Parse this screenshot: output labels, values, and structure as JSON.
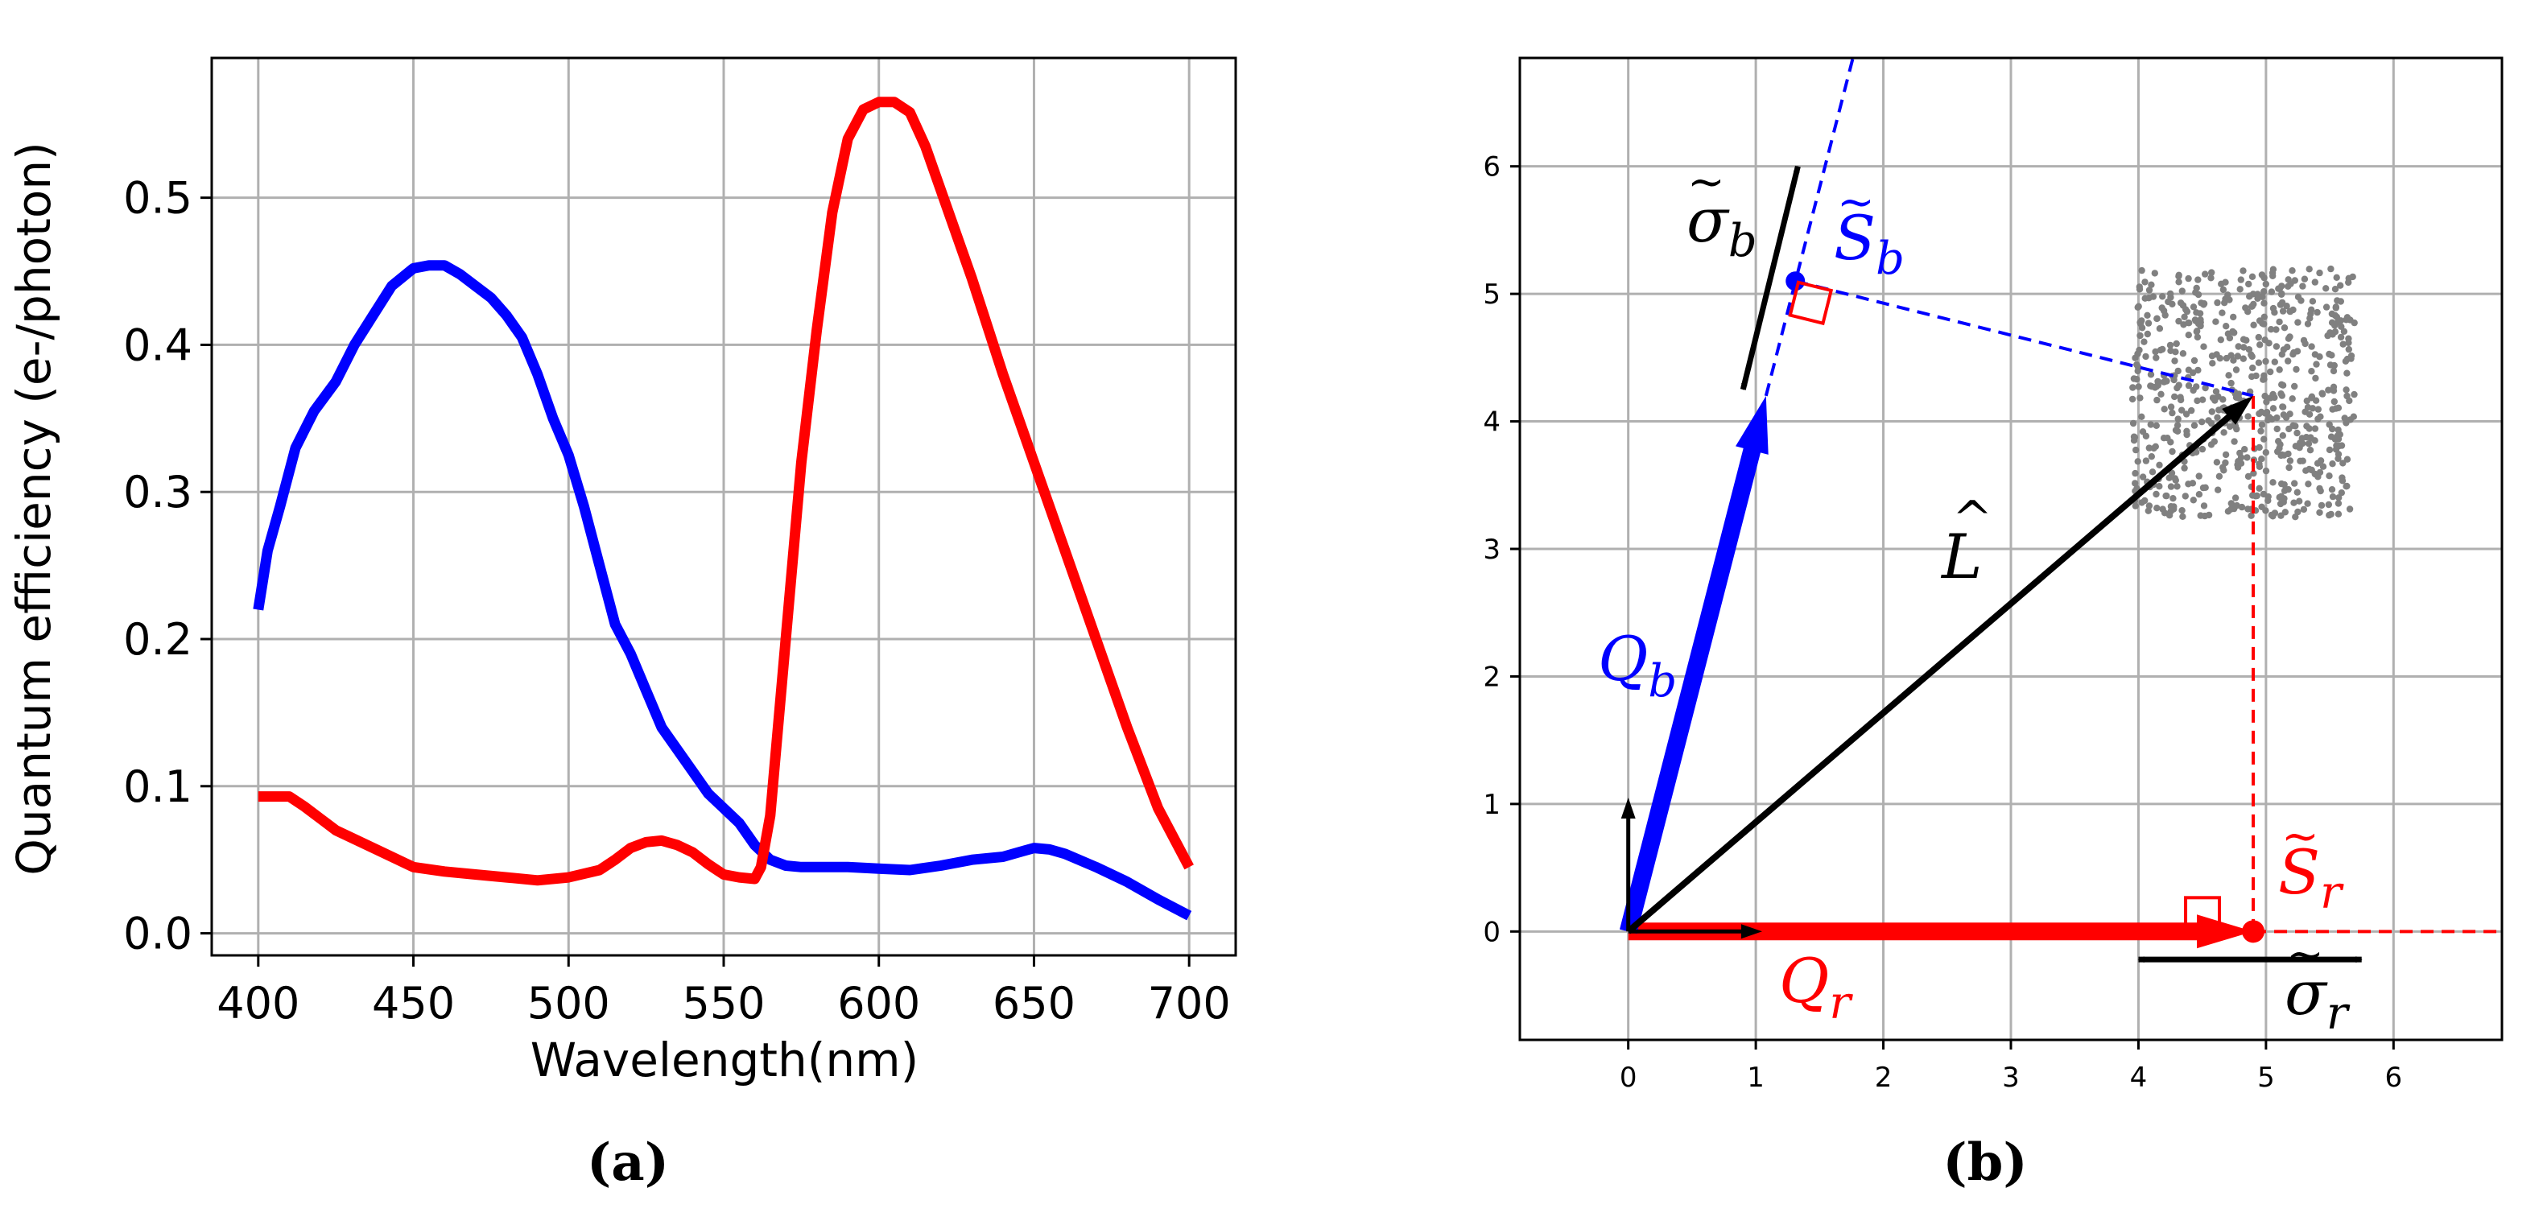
{
  "colors": {
    "blue": "#0000ff",
    "red": "#ff0000",
    "black": "#000000",
    "grid": "#b0b0b0",
    "scatter": "#808080"
  },
  "captions": {
    "a": "(a)",
    "b": "(b)"
  },
  "chart_data": [
    {
      "type": "line",
      "title": "",
      "xlabel": "Wavelength(nm)",
      "ylabel": "Quantum efficiency (e-/photon)",
      "xlim": [
        385,
        715
      ],
      "ylim": [
        -0.015,
        0.595
      ],
      "xticks": [
        400,
        450,
        500,
        550,
        600,
        650,
        700
      ],
      "yticks": [
        0.0,
        0.1,
        0.2,
        0.3,
        0.4,
        0.5
      ],
      "xtick_labels": [
        "400",
        "450",
        "500",
        "550",
        "600",
        "650",
        "700"
      ],
      "ytick_labels": [
        "0.0",
        "0.1",
        "0.2",
        "0.3",
        "0.4",
        "0.5"
      ],
      "grid": true,
      "series": [
        {
          "name": "blue",
          "color": "blue",
          "x": [
            400,
            403,
            407,
            412,
            418,
            425,
            431,
            437,
            443,
            450,
            455,
            460,
            465,
            470,
            475,
            480,
            485,
            490,
            495,
            500,
            505,
            510,
            515,
            520,
            525,
            530,
            535,
            540,
            545,
            550,
            555,
            560,
            565,
            570,
            575,
            580,
            590,
            600,
            610,
            620,
            630,
            640,
            645,
            650,
            655,
            660,
            670,
            680,
            690,
            700
          ],
          "values": [
            0.22,
            0.26,
            0.29,
            0.33,
            0.355,
            0.375,
            0.4,
            0.42,
            0.44,
            0.452,
            0.454,
            0.454,
            0.448,
            0.44,
            0.432,
            0.42,
            0.405,
            0.38,
            0.35,
            0.325,
            0.29,
            0.25,
            0.21,
            0.19,
            0.165,
            0.14,
            0.125,
            0.11,
            0.095,
            0.085,
            0.075,
            0.06,
            0.05,
            0.046,
            0.045,
            0.045,
            0.045,
            0.044,
            0.043,
            0.046,
            0.05,
            0.052,
            0.055,
            0.058,
            0.057,
            0.054,
            0.045,
            0.035,
            0.023,
            0.012
          ]
        },
        {
          "name": "red",
          "color": "red",
          "x": [
            400,
            405,
            410,
            415,
            420,
            425,
            430,
            440,
            450,
            460,
            470,
            480,
            490,
            500,
            510,
            515,
            520,
            525,
            530,
            535,
            540,
            545,
            550,
            555,
            560,
            562,
            565,
            570,
            575,
            580,
            585,
            590,
            595,
            600,
            605,
            610,
            615,
            620,
            630,
            640,
            650,
            660,
            670,
            680,
            690,
            700
          ],
          "values": [
            0.093,
            0.093,
            0.093,
            0.086,
            0.078,
            0.07,
            0.065,
            0.055,
            0.045,
            0.042,
            0.04,
            0.038,
            0.036,
            0.038,
            0.043,
            0.05,
            0.058,
            0.062,
            0.063,
            0.06,
            0.055,
            0.047,
            0.04,
            0.038,
            0.037,
            0.045,
            0.08,
            0.2,
            0.32,
            0.41,
            0.49,
            0.54,
            0.56,
            0.565,
            0.565,
            0.558,
            0.535,
            0.505,
            0.445,
            0.38,
            0.32,
            0.26,
            0.2,
            0.14,
            0.085,
            0.045
          ]
        }
      ]
    },
    {
      "type": "scatter",
      "title": "",
      "xlim": [
        -0.85,
        6.85
      ],
      "ylim": [
        -0.85,
        6.85
      ],
      "xticks": [
        0,
        1,
        2,
        3,
        4,
        5,
        6
      ],
      "yticks": [
        0,
        1,
        2,
        3,
        4,
        5,
        6
      ],
      "xtick_labels": [
        "0",
        "1",
        "2",
        "3",
        "4",
        "5",
        "6"
      ],
      "ytick_labels": [
        "0",
        "1",
        "2",
        "3",
        "4",
        "5",
        "6"
      ],
      "grid": true,
      "scatter_cloud": {
        "x_range": [
          3.95,
          5.7
        ],
        "y_range": [
          3.25,
          5.2
        ],
        "count": 650,
        "color": "scatter"
      },
      "vectors": [
        {
          "name": "Q_r",
          "from": [
            0,
            0
          ],
          "to": [
            4.9,
            0
          ],
          "color": "red",
          "weight": "thick"
        },
        {
          "name": "Q_b",
          "from": [
            0,
            0
          ],
          "to": [
            1.08,
            4.2
          ],
          "color": "blue",
          "weight": "thick"
        },
        {
          "name": "L_hat",
          "from": [
            0,
            0
          ],
          "to": [
            4.9,
            4.2
          ],
          "color": "black",
          "weight": "medium"
        },
        {
          "name": "unit_x",
          "from": [
            0,
            0
          ],
          "to": [
            1.05,
            0
          ],
          "color": "black",
          "weight": "thin"
        },
        {
          "name": "unit_y",
          "from": [
            0,
            0
          ],
          "to": [
            0,
            1.05
          ],
          "color": "black",
          "weight": "thin"
        }
      ],
      "projection_points": {
        "S_r": {
          "x": 4.9,
          "y": 0,
          "color": "red"
        },
        "S_b": {
          "x": 1.31,
          "y": 5.1,
          "color": "blue"
        }
      },
      "spread_arrows": {
        "sigma_r": {
          "from": [
            4.0,
            -0.22
          ],
          "to": [
            5.75,
            -0.22
          ]
        },
        "sigma_b": {
          "from": [
            0.9,
            4.25
          ],
          "to": [
            1.33,
            6.0
          ]
        }
      },
      "labels": {
        "Q_r": "Q",
        "Q_r_sub": "r",
        "Q_b": "Q",
        "Q_b_sub": "b",
        "L_hat": "L",
        "S_r": "S",
        "S_r_sub": "r",
        "S_b": "S",
        "S_b_sub": "b",
        "sigma_r": "σ",
        "sigma_r_sub": "r",
        "sigma_b": "σ",
        "sigma_b_sub": "b"
      }
    }
  ]
}
